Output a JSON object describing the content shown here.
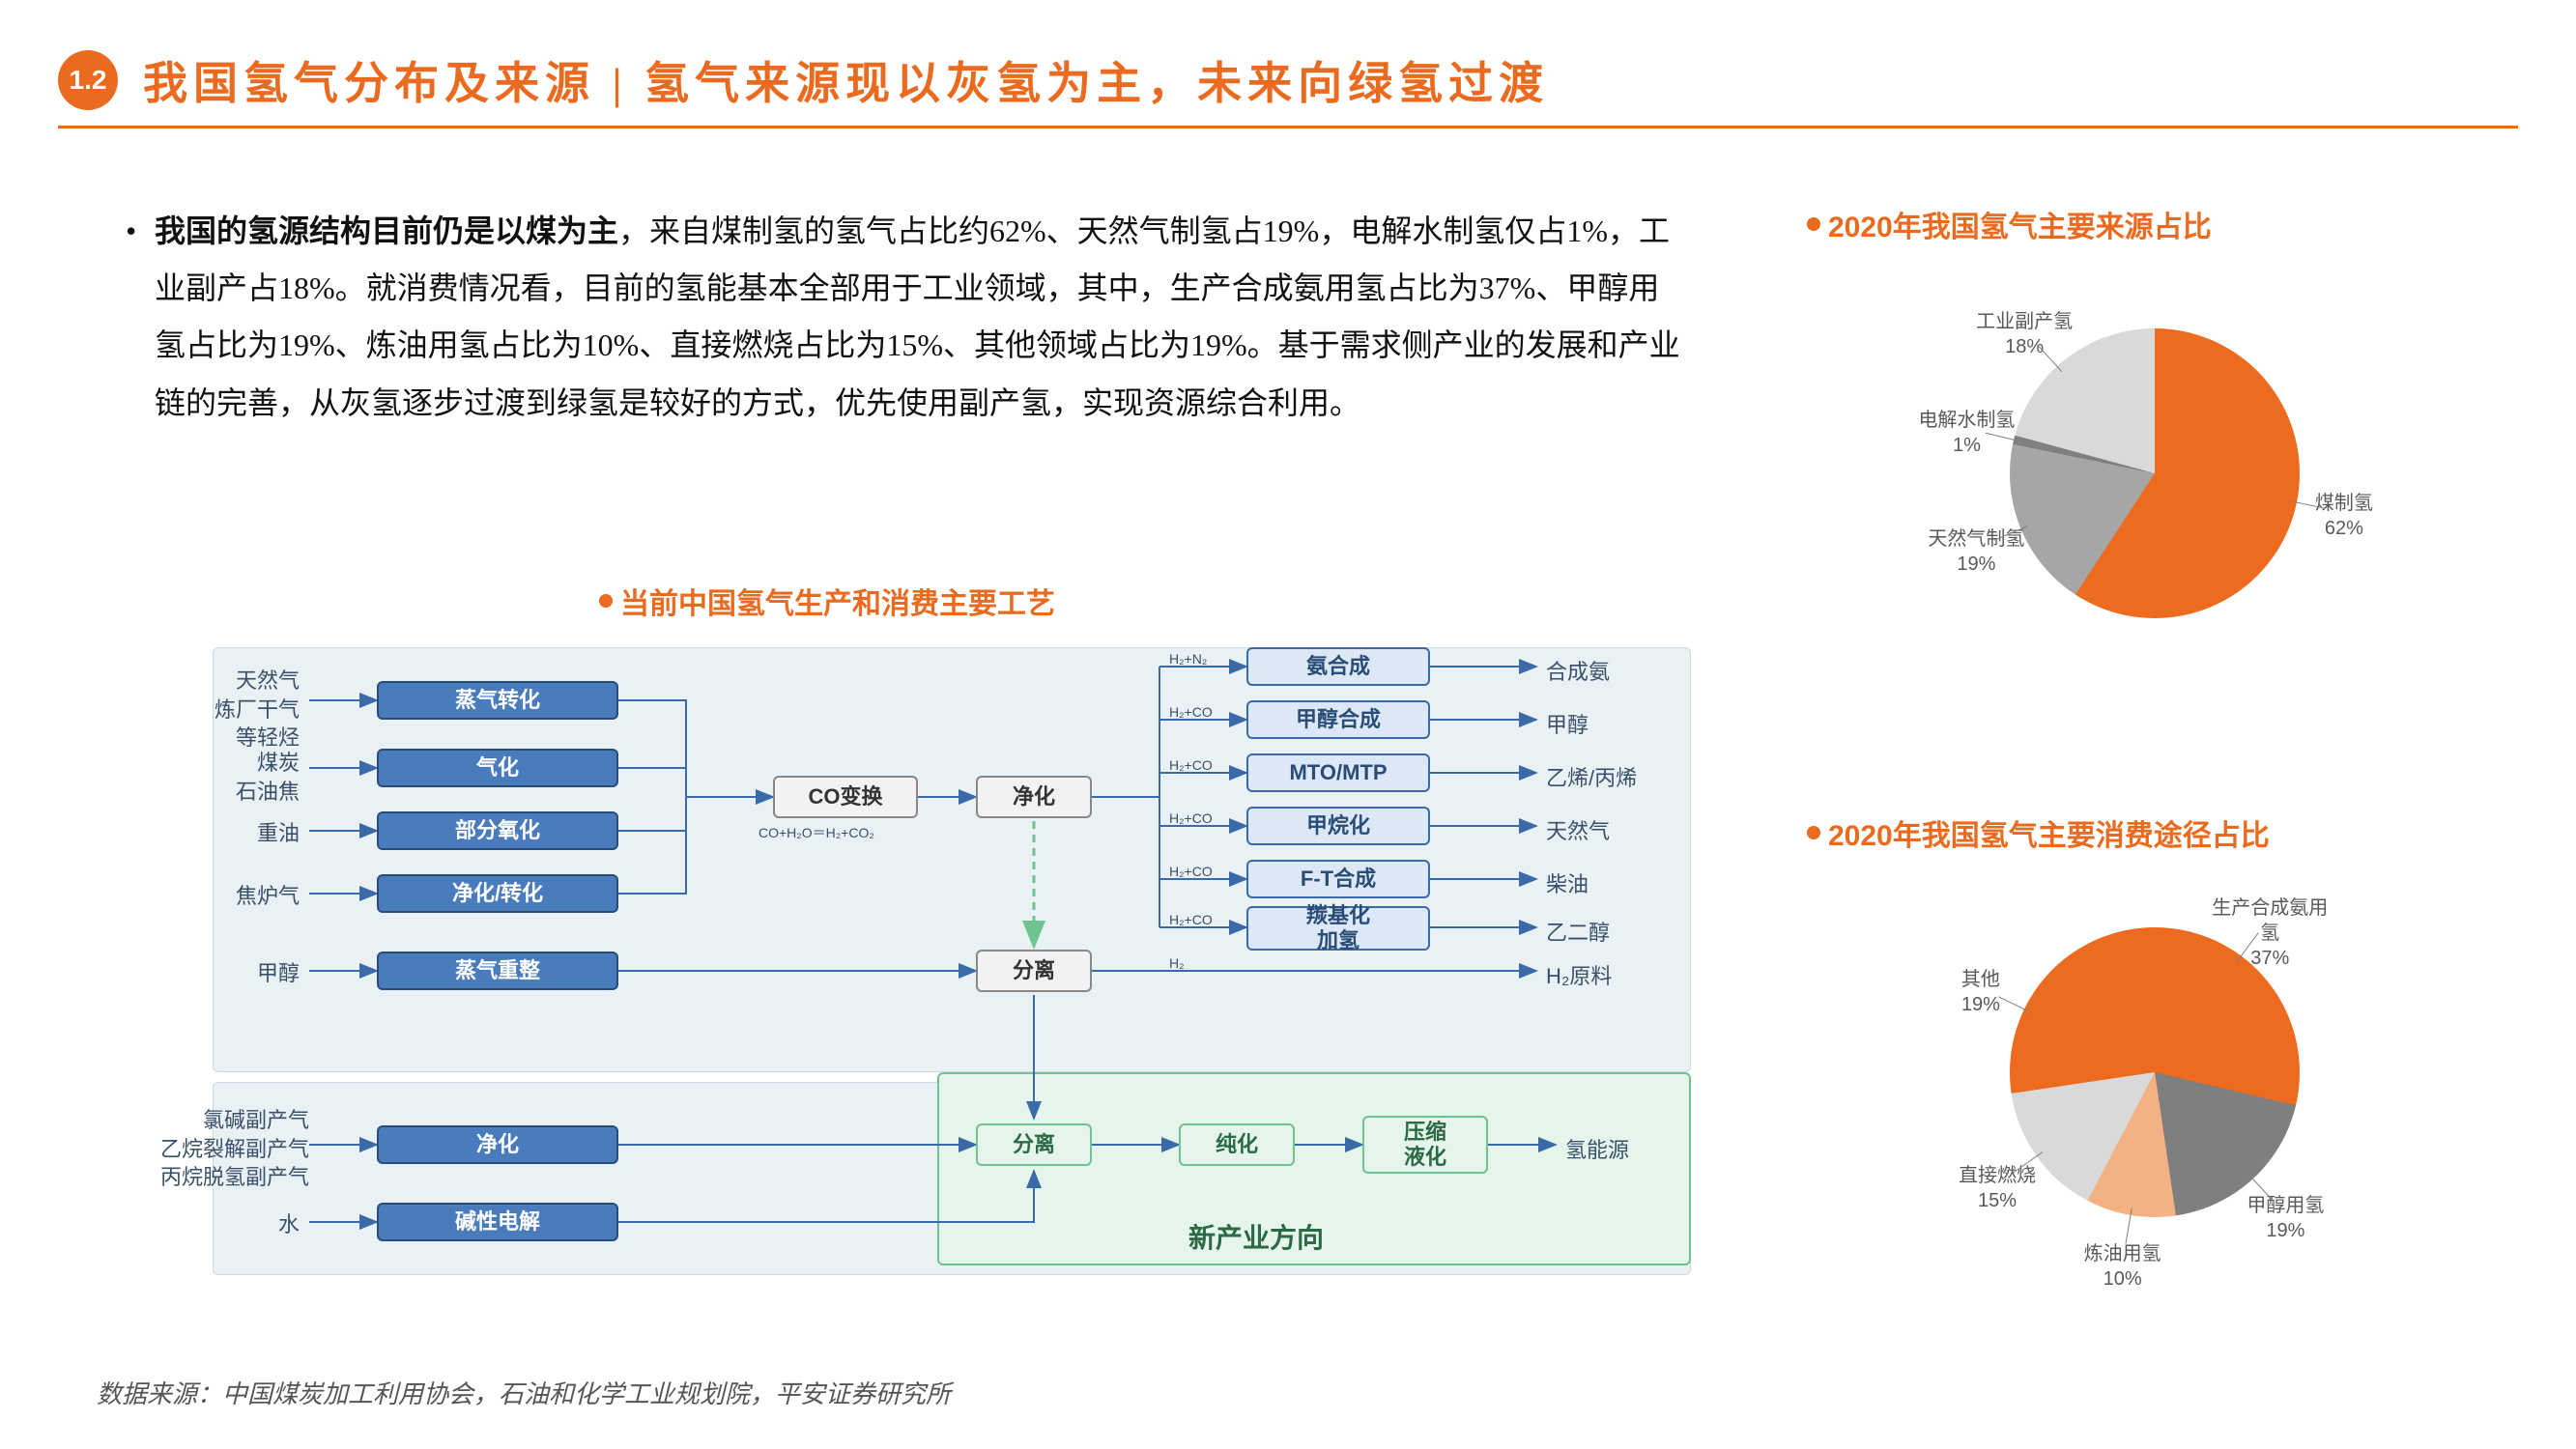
{
  "header": {
    "section_number": "1.2",
    "title": "我国氢气分布及来源 | 氢气来源现以灰氢为主，未来向绿氢过渡",
    "accent_color": "#ea6b1f",
    "underline_color": "#ea6b1f"
  },
  "body_paragraph": {
    "text": "我国的氢源结构目前仍是以煤为主，来自煤制氢的氢气占比约62%、天然气制氢占19%，电解水制氢仅占1%，工业副产占18%。就消费情况看，目前的氢能基本全部用于工业领域，其中，生产合成氨用氢占比为37%、甲醇用氢占比为19%、炼油用氢占比为10%、直接燃烧占比为15%、其他领域占比为19%。基于需求侧产业的发展和产业链的完善，从灰氢逐步过渡到绿氢是较好的方式，优先使用副产氢，实现资源综合利用。",
    "bold_prefix": "我国的氢源结构目前仍是以煤为主",
    "fontsize": 32,
    "line_height": 1.85
  },
  "flowchart": {
    "title": "当前中国氢气生产和消费主要工艺",
    "background_color_panel": "#eaf1f5",
    "green_panel_color": "#e6f5ec",
    "green_border_color": "#6fc391",
    "node_blue_fill": "#dce8f5",
    "node_blue_border": "#3a6aa8",
    "node_dblue_fill": "#4a7bbd",
    "node_gray_fill": "#f2f2f2",
    "new_direction_label": "新产业方向",
    "co_equation": "CO+H₂O＝H₂+CO₂",
    "source_labels": {
      "s1": "天然气\n炼厂干气\n等轻烃",
      "s2": "煤炭\n石油焦",
      "s3": "重油",
      "s4": "焦炉气",
      "s5": "甲醇",
      "s6": "氯碱副产气\n乙烷裂解副产气\n丙烷脱氢副产气",
      "s7": "水"
    },
    "process_nodes": {
      "p1": "蒸气转化",
      "p2": "气化",
      "p3": "部分氧化",
      "p4": "净化/转化",
      "p5": "蒸气重整",
      "p6": "净化",
      "p7": "碱性电解",
      "mid1": "CO变换",
      "mid2": "净化",
      "mid3": "分离",
      "mid4": "分离",
      "mid5": "纯化",
      "mid6": "压缩\n液化"
    },
    "product_nodes": {
      "o1": "氨合成",
      "o2": "甲醇合成",
      "o3": "MTO/MTP",
      "o4": "甲烷化",
      "o5": "F-T合成",
      "o6": "羰基化\n加氢"
    },
    "output_labels": {
      "r1": "合成氨",
      "r2": "甲醇",
      "r3": "乙烯/丙烯",
      "r4": "天然气",
      "r5": "柴油",
      "r6": "乙二醇",
      "r7": "H₂原料",
      "r8": "氢能源"
    },
    "edge_labels": {
      "e1": "H₂+N₂",
      "e2": "H₂+CO",
      "e3": "H₂+CO",
      "e4": "H₂+CO",
      "e5": "H₂+CO",
      "e6": "H₂+CO",
      "e7": "H₂"
    }
  },
  "pie1": {
    "title": "2020年我国氢气主要来源占比",
    "type": "pie",
    "background_color": "#ffffff",
    "slices": [
      {
        "label": "煤制氢",
        "value": 62,
        "color": "#ed6b1f"
      },
      {
        "label": "天然气制氢",
        "value": 19,
        "color": "#a6a6a6"
      },
      {
        "label": "电解水制氢",
        "value": 1,
        "color": "#808080"
      },
      {
        "label": "工业副产氢",
        "value": 18,
        "color": "#d9d9d9"
      }
    ],
    "label_fontsize": 20,
    "label_color": "#595959",
    "start_angle_deg": -10
  },
  "pie2": {
    "title": "2020年我国氢气主要消费途径占比",
    "type": "pie",
    "background_color": "#ffffff",
    "slices": [
      {
        "label": "生产合成氨用氢",
        "value": 37,
        "color": "#ed6b1f"
      },
      {
        "label": "甲醇用氢",
        "value": 19,
        "color": "#7f7f7f"
      },
      {
        "label": "炼油用氢",
        "value": 10,
        "color": "#f4b183"
      },
      {
        "label": "直接燃烧",
        "value": 15,
        "color": "#d9d9d9"
      },
      {
        "label": "其他",
        "value": 19,
        "color": "#ed6b1f"
      }
    ],
    "label_fontsize": 20,
    "label_color": "#595959",
    "start_angle_deg": -30
  },
  "source_citation": "数据来源：中国煤炭加工利用协会，石油和化学工业规划院，平安证券研究所"
}
